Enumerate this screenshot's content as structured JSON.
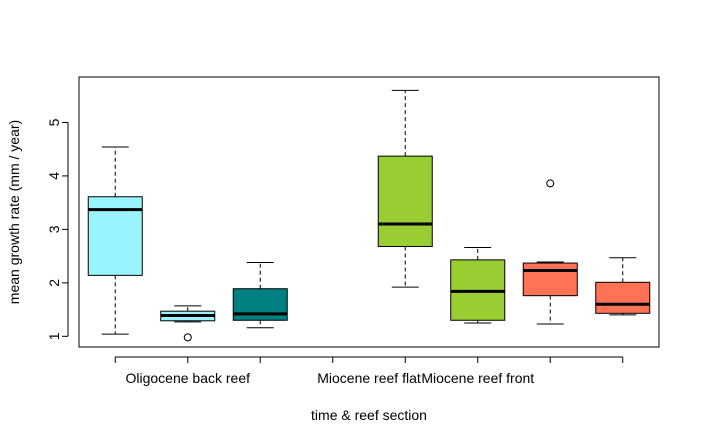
{
  "chart_data": {
    "type": "box",
    "xlabel": "time & reef section",
    "ylabel": "mean growth rate (mm / year)",
    "ylim": [
      0.8,
      5.85
    ],
    "yticks": [
      "1",
      "2",
      "3",
      "4",
      "5"
    ],
    "x_group_labels": [
      {
        "label": "Oligocene back reef",
        "position": 2
      },
      {
        "label": "Miocene reef flat",
        "position": 4.5
      },
      {
        "label": "Miocene reef front",
        "position": 6
      }
    ],
    "boxes": [
      {
        "position": 1,
        "color": "#98F5FF",
        "min": 1.04,
        "q1": 2.14,
        "median": 3.37,
        "q3": 3.61,
        "max": 4.54,
        "outliers": []
      },
      {
        "position": 2,
        "color": "#98F5FF",
        "min": 1.27,
        "q1": 1.29,
        "median": 1.39,
        "q3": 1.47,
        "max": 1.57,
        "outliers": [
          0.98
        ]
      },
      {
        "position": 3,
        "color": "#008080",
        "min": 1.16,
        "q1": 1.3,
        "median": 1.42,
        "q3": 1.89,
        "max": 2.38,
        "outliers": []
      },
      {
        "position": 5,
        "color": "#9ACD32",
        "min": 1.92,
        "q1": 2.68,
        "median": 3.1,
        "q3": 4.37,
        "max": 5.6,
        "outliers": []
      },
      {
        "position": 6,
        "color": "#9ACD32",
        "min": 1.25,
        "q1": 1.3,
        "median": 1.84,
        "q3": 2.43,
        "max": 2.66,
        "outliers": []
      },
      {
        "position": 7,
        "color": "#FF7256",
        "min": 1.23,
        "q1": 1.76,
        "median": 2.23,
        "q3": 2.37,
        "max": 2.39,
        "outliers": [
          3.86
        ]
      },
      {
        "position": 8,
        "color": "#FF7256",
        "min": 1.4,
        "q1": 1.43,
        "median": 1.6,
        "q3": 2.01,
        "max": 2.47,
        "outliers": []
      }
    ]
  }
}
